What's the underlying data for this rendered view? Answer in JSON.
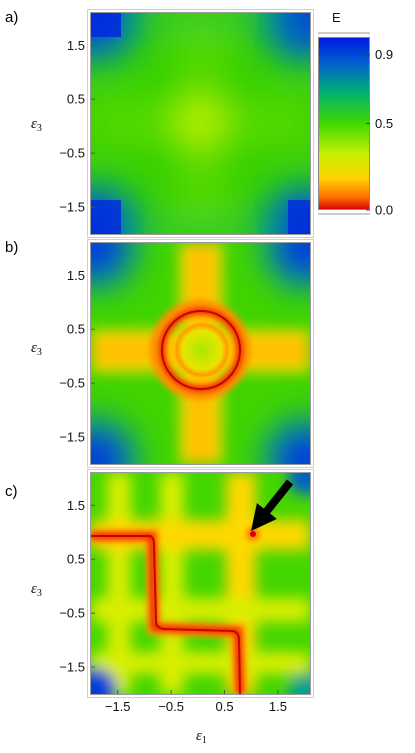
{
  "chart_data": [
    {
      "type": "heatmap",
      "panel_label": "a)",
      "xlabel": "",
      "ylabel": "ε3",
      "xlim": [
        -2.0,
        2.1
      ],
      "ylim": [
        -2.0,
        2.1
      ],
      "yticks": [
        "1.5",
        "0.5",
        "−0.5",
        "−1.5"
      ],
      "ytick_values": [
        1.5,
        0.5,
        -0.5,
        -1.5
      ],
      "xticks": [],
      "features": "smooth field; maximum E≈0.9 in corners, yellow-green minimum ≈0.4 near origin"
    },
    {
      "type": "heatmap",
      "panel_label": "b)",
      "xlabel": "",
      "ylabel": "ε3",
      "xlim": [
        -2.0,
        2.1
      ],
      "ylim": [
        -2.0,
        2.1
      ],
      "yticks": [
        "1.5",
        "0.5",
        "−0.5",
        "−1.5"
      ],
      "ytick_values": [
        1.5,
        0.5,
        -0.5,
        -1.5
      ],
      "xticks": [],
      "features": "yellow cross bands along ε1≈0 and ε3≈0; red ring of zero energy, radius ≈0.7, centred near (0.1, 0)"
    },
    {
      "type": "heatmap",
      "panel_label": "c)",
      "xlabel": "ε1",
      "ylabel": "ε3",
      "xlim": [
        -2.0,
        2.1
      ],
      "ylim": [
        -2.0,
        2.1
      ],
      "yticks": [
        "1.5",
        "0.5",
        "−0.5",
        "−1.5"
      ],
      "ytick_values": [
        1.5,
        0.5,
        -0.5,
        -1.5
      ],
      "xticks": [
        "−1.5",
        "−0.5",
        "0.5",
        "1.5"
      ],
      "xtick_values": [
        -1.5,
        -0.5,
        0.5,
        1.5
      ],
      "features": "grid of yellow bands at ε≈−1.2, −0.1, 1.0; red zero-energy path: horizontal at ε3≈1.0 from ε1=−2 to −0.5, down at ε1≈−0.6 to ε3≈−0.75, across to ε1≈0.75, down at ε1≈0.95 to ε3=−2; red dot at (1.0, 1.05)",
      "annotation": {
        "type": "arrow",
        "points_to": [
          1.0,
          1.05
        ]
      }
    }
  ],
  "colorbar": {
    "title": "E",
    "ticks": [
      "0.9",
      "0.5",
      "0.0"
    ],
    "tick_values": [
      0.9,
      0.5,
      0.0
    ],
    "range": [
      0.0,
      1.0
    ],
    "colormap": [
      "#d40000",
      "#ff8a00",
      "#ffd000",
      "#c8f000",
      "#40d800",
      "#00b070",
      "#0060d0",
      "#0018e0"
    ]
  }
}
